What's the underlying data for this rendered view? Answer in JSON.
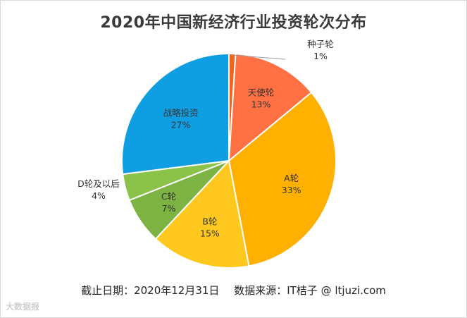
{
  "chart_data": {
    "type": "pie",
    "title": "2020年中国新经济行业投资轮次分布",
    "categories": [
      "种子轮",
      "天使轮",
      "A轮",
      "B轮",
      "C轮",
      "D轮及以后",
      "战略投资"
    ],
    "values": [
      1,
      13,
      33,
      15,
      7,
      4,
      27
    ],
    "labels": [
      "1%",
      "13%",
      "33%",
      "15%",
      "7%",
      "4%",
      "27%"
    ],
    "colors": [
      "#f0641e",
      "#ff7043",
      "#ffb000",
      "#ffc81e",
      "#7cb342",
      "#8bc34a",
      "#0f9ee2"
    ],
    "legend": "none"
  },
  "footer": {
    "date": "截止日期：2020年12月31日",
    "source": "数据来源：IT桔子 @ ltjuzi.com"
  },
  "watermark": "大数据报"
}
